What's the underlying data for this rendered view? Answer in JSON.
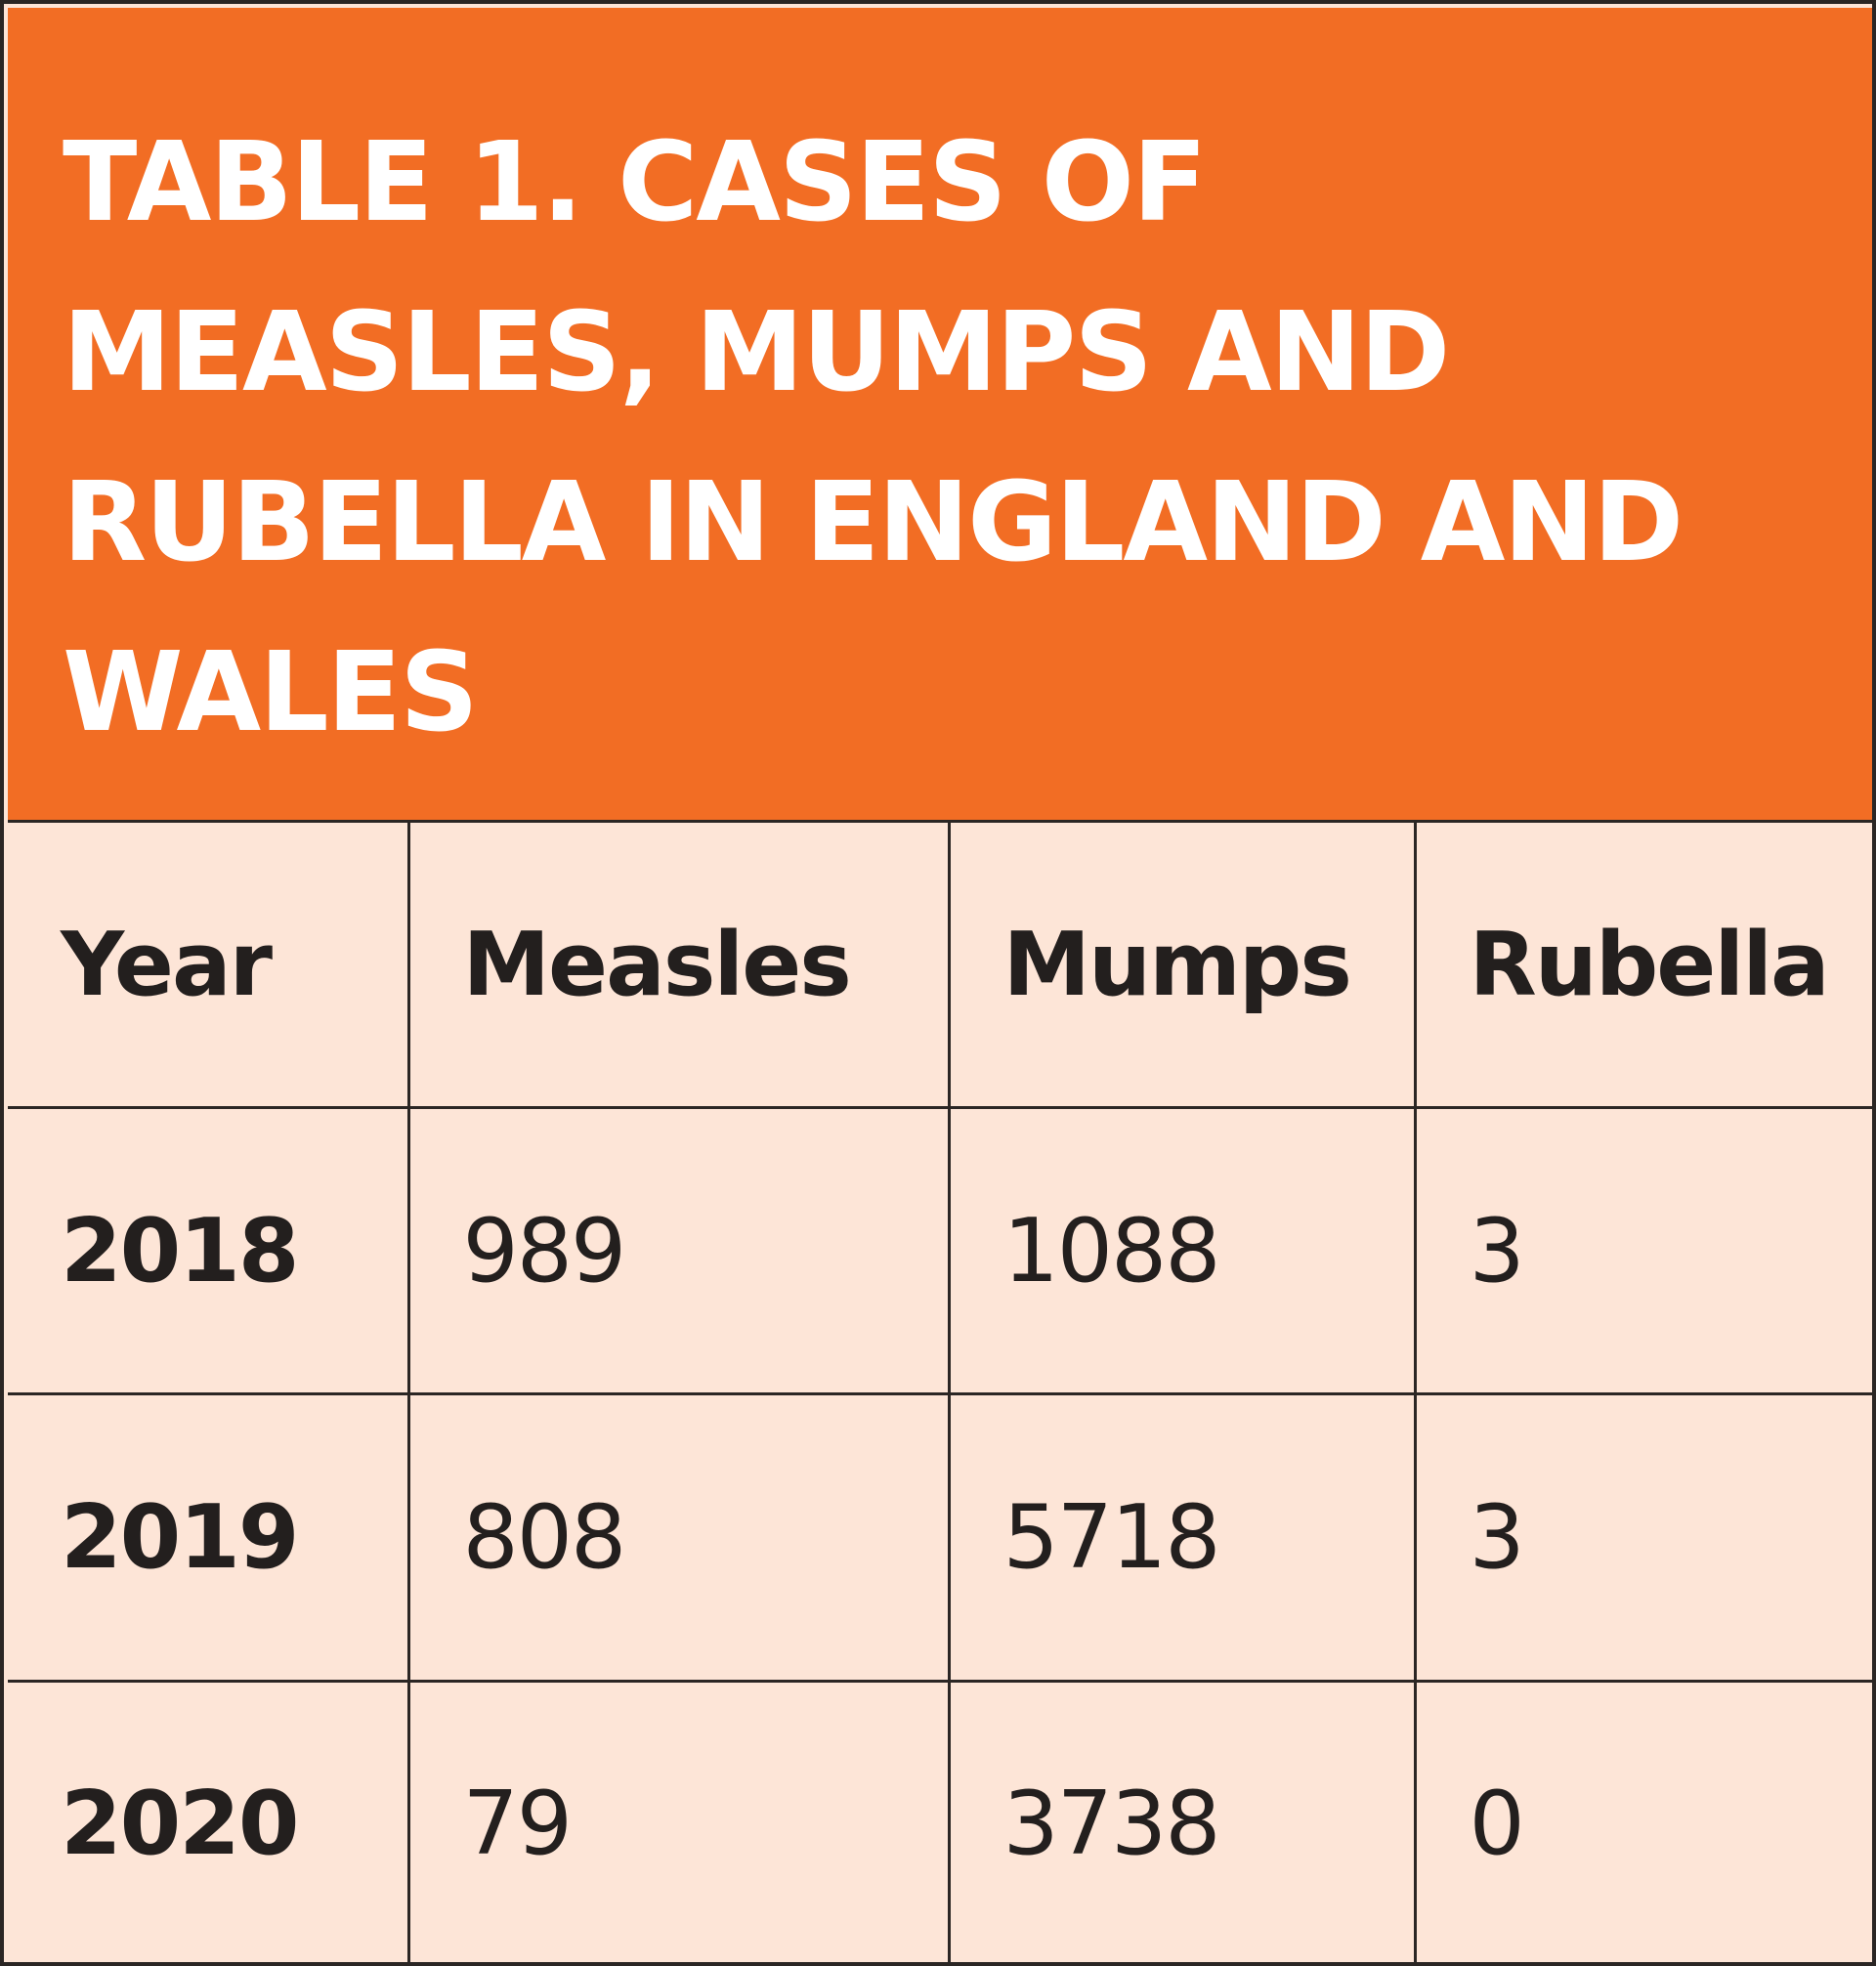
{
  "chart_data": {
    "type": "table",
    "title": "TABLE 1. CASES OF MEASLES, MUMPS AND RUBELLA IN ENGLAND AND WALES",
    "columns": [
      "Year",
      "Measles",
      "Mumps",
      "Rubella"
    ],
    "rows": [
      [
        "2018",
        "989",
        "1088",
        "3"
      ],
      [
        "2019",
        "808",
        "5718",
        "3"
      ],
      [
        "2020",
        "79",
        "3738",
        "0"
      ]
    ]
  },
  "colors": {
    "header_background": "#f26d24",
    "title_text": "#ffffff",
    "table_background": "#fde5d7",
    "text": "#231f1e",
    "rule": "#2b2624"
  }
}
